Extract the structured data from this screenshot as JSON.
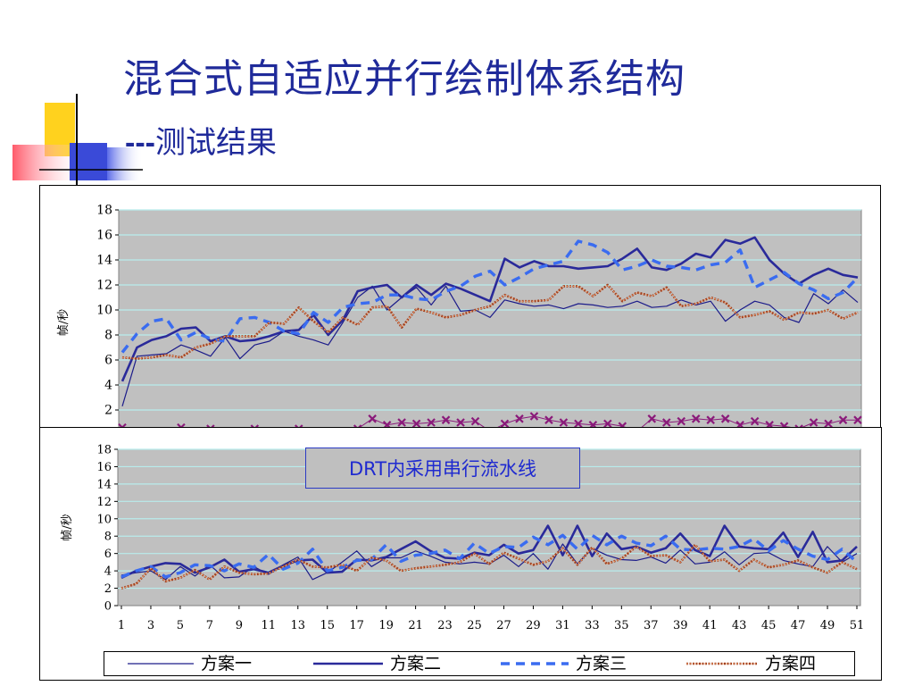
{
  "slide": {
    "title": "混合式自适应并行绘制体系结构",
    "subtitle_dash": "---",
    "subtitle_text": "测试结果",
    "annotation": "DRT内采用串行流水线"
  },
  "colors": {
    "title": "#1f2a9a",
    "plot_bg": "#c0c0c0",
    "grid": "#b8ecec",
    "s1": "#1c1c8a",
    "s2": "#2a2a9a",
    "s3": "#3a6cf0",
    "s4": "#a04020",
    "s5": "#8a1a7a"
  },
  "chart_data": [
    {
      "type": "line",
      "ylabel": "帧/秒",
      "ylim": [
        0,
        18
      ],
      "yticks": [
        "2",
        "4",
        "6",
        "8",
        "10",
        "12",
        "14",
        "16",
        "18"
      ],
      "x": [
        1,
        2,
        3,
        4,
        5,
        6,
        7,
        8,
        9,
        10,
        11,
        12,
        13,
        14,
        15,
        16,
        17,
        18,
        19,
        20,
        21,
        22,
        23,
        24,
        25,
        26,
        27,
        28,
        29,
        30,
        31,
        32,
        33,
        34,
        35,
        36,
        37,
        38,
        39,
        40,
        41,
        42,
        43,
        44,
        45,
        46,
        47,
        48,
        49,
        50,
        51
      ],
      "series": [
        {
          "name": "方案一",
          "values": [
            2.3,
            6.3,
            6.4,
            6.5,
            7.2,
            6.8,
            6.3,
            7.8,
            6.1,
            7.2,
            7.5,
            8.3,
            7.9,
            7.6,
            7.2,
            9.0,
            11.0,
            11.9,
            10.0,
            11.0,
            11.8,
            10.4,
            11.9,
            9.9,
            10.0,
            9.4,
            10.8,
            10.5,
            10.3,
            10.4,
            10.1,
            10.5,
            10.4,
            10.2,
            10.3,
            10.7,
            10.2,
            10.3,
            10.8,
            10.4,
            10.7,
            9.1,
            10.0,
            10.7,
            10.4,
            9.4,
            9.0,
            11.3,
            10.5,
            11.6,
            10.6
          ]
        },
        {
          "name": "方案二",
          "values": [
            4.3,
            7.0,
            7.6,
            7.9,
            8.5,
            8.6,
            7.5,
            7.9,
            7.5,
            7.6,
            7.9,
            8.3,
            8.4,
            9.6,
            8.0,
            9.2,
            11.5,
            11.8,
            12.0,
            11.0,
            12.0,
            11.2,
            12.1,
            11.7,
            11.2,
            10.7,
            14.1,
            13.4,
            13.9,
            13.5,
            13.5,
            13.3,
            13.4,
            13.5,
            14.1,
            14.9,
            13.4,
            13.2,
            13.7,
            14.5,
            14.2,
            15.6,
            15.3,
            15.8,
            14.0,
            12.9,
            12.1,
            12.8,
            13.3,
            12.8,
            12.6
          ]
        },
        {
          "name": "方案三",
          "values": [
            6.6,
            8.1,
            9.1,
            9.3,
            7.6,
            8.2,
            7.7,
            7.5,
            9.3,
            9.4,
            9.0,
            8.3,
            8.1,
            9.8,
            9.0,
            10.2,
            10.5,
            10.6,
            11.2,
            11.2,
            10.9,
            10.8,
            11.5,
            11.9,
            12.7,
            13.1,
            12.0,
            12.6,
            13.3,
            13.6,
            13.9,
            15.5,
            15.2,
            14.6,
            13.2,
            13.5,
            14.0,
            13.5,
            13.4,
            13.2,
            13.6,
            13.8,
            14.8,
            11.8,
            12.4,
            13.0,
            12.1,
            11.6,
            10.9,
            11.4,
            12.6
          ]
        },
        {
          "name": "方案四",
          "values": [
            6.2,
            6.1,
            6.2,
            6.4,
            6.2,
            7.0,
            7.3,
            7.9,
            7.9,
            7.9,
            9.0,
            8.9,
            10.2,
            9.1,
            8.2,
            9.4,
            8.8,
            10.2,
            10.3,
            8.6,
            10.1,
            9.8,
            9.4,
            9.6,
            10.0,
            10.3,
            11.2,
            10.7,
            10.7,
            10.8,
            11.9,
            11.9,
            11.1,
            12.0,
            10.7,
            11.4,
            11.1,
            11.8,
            10.3,
            10.5,
            11.0,
            10.6,
            9.4,
            9.6,
            9.9,
            9.2,
            9.8,
            9.7,
            10.0,
            9.3,
            9.8
          ]
        },
        {
          "values": [
            0.6,
            0.2,
            0.2,
            0.2,
            0.6,
            0.3,
            0.5,
            0.2,
            0.3,
            0.5,
            0.2,
            0.2,
            0.5,
            0.2,
            0.2,
            0.2,
            0.5,
            1.3,
            0.8,
            1.0,
            0.9,
            1.0,
            1.2,
            1.0,
            1.1,
            0.3,
            0.9,
            1.3,
            1.5,
            1.2,
            1.0,
            0.9,
            0.8,
            0.9,
            0.7,
            0.3,
            1.3,
            1.0,
            1.1,
            1.3,
            1.2,
            1.3,
            0.8,
            1.1,
            0.8,
            0.7,
            0.5,
            1.0,
            0.9,
            1.2,
            1.2
          ]
        }
      ]
    },
    {
      "type": "line",
      "ylabel": "帧/秒",
      "ylim": [
        0,
        18
      ],
      "yticks": [
        "0",
        "2",
        "4",
        "6",
        "8",
        "10",
        "12",
        "14",
        "16",
        "18"
      ],
      "xticks": [
        "1",
        "3",
        "5",
        "7",
        "9",
        "11",
        "13",
        "15",
        "17",
        "19",
        "21",
        "23",
        "25",
        "27",
        "29",
        "31",
        "33",
        "35",
        "37",
        "39",
        "41",
        "43",
        "45",
        "47",
        "49",
        "51"
      ],
      "x": [
        1,
        2,
        3,
        4,
        5,
        6,
        7,
        8,
        9,
        10,
        11,
        12,
        13,
        14,
        15,
        16,
        17,
        18,
        19,
        20,
        21,
        22,
        23,
        24,
        25,
        26,
        27,
        28,
        29,
        30,
        31,
        32,
        33,
        34,
        35,
        36,
        37,
        38,
        39,
        40,
        41,
        42,
        43,
        44,
        45,
        46,
        47,
        48,
        49,
        50,
        51
      ],
      "series": [
        {
          "name": "方案一",
          "values": [
            3.5,
            3.8,
            4.0,
            3.0,
            4.5,
            3.4,
            4.7,
            3.2,
            3.3,
            4.5,
            3.6,
            4.7,
            5.6,
            3.0,
            3.8,
            5.0,
            6.3,
            4.5,
            5.5,
            5.5,
            6.3,
            5.7,
            5.0,
            4.8,
            5.0,
            4.8,
            5.8,
            4.5,
            6.0,
            4.2,
            7.1,
            4.8,
            6.6,
            5.8,
            5.3,
            5.2,
            5.6,
            4.9,
            6.4,
            4.8,
            5.0,
            6.2,
            4.7,
            6.0,
            6.1,
            5.2,
            4.8,
            4.5,
            6.8,
            5.0,
            6.0
          ]
        },
        {
          "name": "方案二",
          "values": [
            3.2,
            4.0,
            4.5,
            4.9,
            4.8,
            3.8,
            4.4,
            5.3,
            3.9,
            4.2,
            3.8,
            4.6,
            5.2,
            5.3,
            3.8,
            3.9,
            5.3,
            5.2,
            5.6,
            6.5,
            7.4,
            6.3,
            5.5,
            5.4,
            6.1,
            5.8,
            7.0,
            6.0,
            6.4,
            9.2,
            5.8,
            9.2,
            5.7,
            8.3,
            6.5,
            6.8,
            6.1,
            6.6,
            8.3,
            6.4,
            5.7,
            9.2,
            6.8,
            6.6,
            6.5,
            8.4,
            5.6,
            8.5,
            5.0,
            5.2,
            6.8
          ]
        },
        {
          "name": "方案三",
          "values": [
            3.3,
            4.0,
            4.5,
            3.3,
            3.8,
            4.7,
            4.6,
            4.0,
            4.8,
            4.4,
            5.9,
            4.2,
            4.9,
            6.5,
            4.0,
            4.4,
            5.2,
            5.3,
            7.0,
            5.1,
            5.8,
            6.0,
            6.4,
            5.4,
            7.2,
            6.0,
            6.8,
            6.7,
            7.9,
            7.0,
            8.1,
            6.5,
            8.1,
            7.0,
            8.0,
            7.2,
            6.9,
            8.0,
            6.5,
            6.4,
            6.6,
            6.5,
            6.8,
            7.7,
            6.3,
            7.5,
            6.5,
            5.7,
            5.3,
            6.5,
            5.0
          ]
        },
        {
          "name": "方案四",
          "values": [
            2.0,
            2.5,
            4.3,
            2.8,
            3.2,
            4.1,
            3.0,
            4.5,
            3.8,
            3.6,
            3.7,
            4.5,
            5.3,
            4.5,
            4.4,
            4.7,
            4.0,
            5.5,
            5.2,
            4.0,
            4.3,
            4.5,
            4.7,
            5.0,
            6.0,
            4.8,
            6.1,
            5.4,
            4.7,
            5.1,
            6.6,
            4.7,
            6.7,
            4.8,
            5.4,
            6.8,
            5.7,
            5.8,
            5.0,
            7.0,
            5.1,
            5.3,
            4.0,
            5.3,
            4.4,
            4.7,
            5.2,
            4.4,
            3.8,
            5.0,
            4.2
          ]
        }
      ]
    }
  ]
}
